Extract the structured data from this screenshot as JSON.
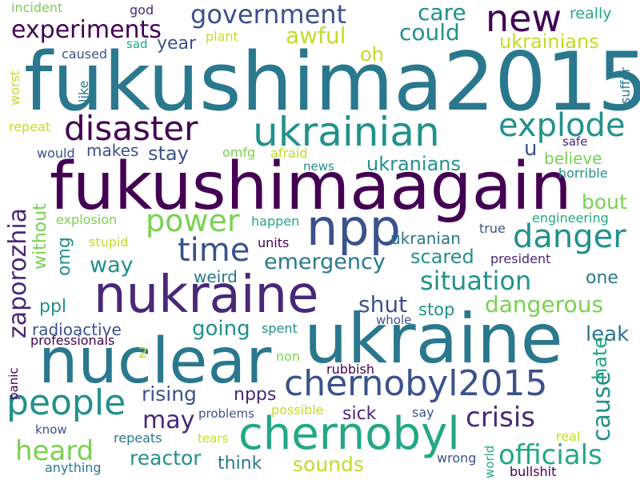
{
  "words": [
    {
      "text": "fukushima2015",
      "color": "#2a788e"
    },
    {
      "text": "fukushimaagain",
      "color": "#440154"
    },
    {
      "text": "ukraine",
      "color": "#2a788e"
    },
    {
      "text": "nuclear",
      "color": "#2a788e"
    },
    {
      "text": "nukraine",
      "color": "#482878"
    },
    {
      "text": "chernobyl",
      "color": "#22a884"
    },
    {
      "text": "npp",
      "color": "#3b528b"
    },
    {
      "text": "ukrainian",
      "color": "#21918c"
    },
    {
      "text": "disaster",
      "color": "#440154"
    },
    {
      "text": "new",
      "color": "#440154"
    },
    {
      "text": "chernobyl2015",
      "color": "#3b528b"
    },
    {
      "text": "people",
      "color": "#21918c"
    },
    {
      "text": "danger",
      "color": "#21918c"
    },
    {
      "text": "explode",
      "color": "#21918c"
    },
    {
      "text": "time",
      "color": "#3b528b"
    },
    {
      "text": "power",
      "color": "#7ad151"
    },
    {
      "text": "government",
      "color": "#3b528b"
    },
    {
      "text": "experiments",
      "color": "#440154"
    },
    {
      "text": "zaporozhia",
      "color": "#482878"
    },
    {
      "text": "situation",
      "color": "#21918c"
    },
    {
      "text": "crisis",
      "color": "#482878"
    },
    {
      "text": "officials",
      "color": "#22a884"
    },
    {
      "text": "heard",
      "color": "#7ad151"
    },
    {
      "text": "cause",
      "color": "#21918c"
    },
    {
      "text": "awful",
      "color": "#bddf26"
    },
    {
      "text": "care",
      "color": "#21918c"
    },
    {
      "text": "could",
      "color": "#21918c"
    },
    {
      "text": "may",
      "color": "#482878"
    },
    {
      "text": "dangerous",
      "color": "#7ad151"
    },
    {
      "text": "shut",
      "color": "#3b528b"
    },
    {
      "text": "emergency",
      "color": "#2a788e"
    },
    {
      "text": "ukrainians",
      "color": "#bddf26"
    },
    {
      "text": "reactor",
      "color": "#21918c"
    },
    {
      "text": "sounds",
      "color": "#bddf26"
    },
    {
      "text": "leak",
      "color": "#2a788e"
    },
    {
      "text": "going",
      "color": "#21918c"
    },
    {
      "text": "way",
      "color": "#21918c"
    },
    {
      "text": "rising",
      "color": "#3b528b"
    },
    {
      "text": "stay",
      "color": "#3b528b"
    },
    {
      "text": "bout",
      "color": "#7ad151"
    },
    {
      "text": "ukranians",
      "color": "#21918c"
    },
    {
      "text": "oh",
      "color": "#bddf26"
    },
    {
      "text": "u",
      "color": "#3b528b"
    },
    {
      "text": "scared",
      "color": "#21918c"
    },
    {
      "text": "hate",
      "color": "#22a884"
    },
    {
      "text": "sick",
      "color": "#482878"
    },
    {
      "text": "think",
      "color": "#2a788e"
    },
    {
      "text": "one",
      "color": "#2a788e"
    },
    {
      "text": "npps",
      "color": "#482878"
    },
    {
      "text": "ppl",
      "color": "#21918c"
    },
    {
      "text": "year",
      "color": "#3b528b"
    },
    {
      "text": "omg",
      "color": "#21918c"
    },
    {
      "text": "believe",
      "color": "#7ad151"
    },
    {
      "text": "makes",
      "color": "#3b528b"
    },
    {
      "text": "radioactive",
      "color": "#3b528b"
    },
    {
      "text": "weird",
      "color": "#2a788e"
    },
    {
      "text": "ukranian",
      "color": "#2a788e"
    },
    {
      "text": "really",
      "color": "#22a884"
    },
    {
      "text": "without",
      "color": "#7ad151"
    },
    {
      "text": "stop",
      "color": "#21918c"
    },
    {
      "text": "horrible",
      "color": "#21918c"
    },
    {
      "text": "happen",
      "color": "#22a884"
    },
    {
      "text": "explosion",
      "color": "#7ad151"
    },
    {
      "text": "engineering",
      "color": "#22a884"
    },
    {
      "text": "president",
      "color": "#482878"
    },
    {
      "text": "true",
      "color": "#3b528b"
    },
    {
      "text": "professionals",
      "color": "#440154"
    },
    {
      "text": "repeats",
      "color": "#2a788e"
    },
    {
      "text": "anything",
      "color": "#2a788e"
    },
    {
      "text": "wrong",
      "color": "#3b528b"
    },
    {
      "text": "bullshit",
      "color": "#440154"
    },
    {
      "text": "world",
      "color": "#22a884"
    },
    {
      "text": "stupid",
      "color": "#bddf26"
    },
    {
      "text": "units",
      "color": "#440154"
    },
    {
      "text": "omfg",
      "color": "#7ad151"
    },
    {
      "text": "afraid",
      "color": "#bddf26"
    },
    {
      "text": "safe",
      "color": "#482878"
    },
    {
      "text": "incident",
      "color": "#7ad151"
    },
    {
      "text": "god",
      "color": "#482878"
    },
    {
      "text": "plant",
      "color": "#bddf26"
    },
    {
      "text": "sad",
      "color": "#22a884"
    },
    {
      "text": "caused",
      "color": "#3b528b"
    },
    {
      "text": "like",
      "color": "#2a788e"
    },
    {
      "text": "worst",
      "color": "#bddf26"
    },
    {
      "text": "suffer",
      "color": "#2a788e"
    },
    {
      "text": "repeat",
      "color": "#bddf26"
    },
    {
      "text": "would",
      "color": "#3b528b"
    },
    {
      "text": "news",
      "color": "#21918c"
    },
    {
      "text": "spent",
      "color": "#21918c"
    },
    {
      "text": "whole",
      "color": "#3b528b"
    },
    {
      "text": "2",
      "color": "#bddf26"
    },
    {
      "text": "non",
      "color": "#7ad151"
    },
    {
      "text": "rubbish",
      "color": "#440154"
    },
    {
      "text": "panic",
      "color": "#440154"
    },
    {
      "text": "problems",
      "color": "#3b528b"
    },
    {
      "text": "possible",
      "color": "#bddf26"
    },
    {
      "text": "say",
      "color": "#3b528b"
    },
    {
      "text": "know",
      "color": "#3b528b"
    },
    {
      "text": "tears",
      "color": "#bddf26"
    },
    {
      "text": "real",
      "color": "#bddf26"
    }
  ]
}
